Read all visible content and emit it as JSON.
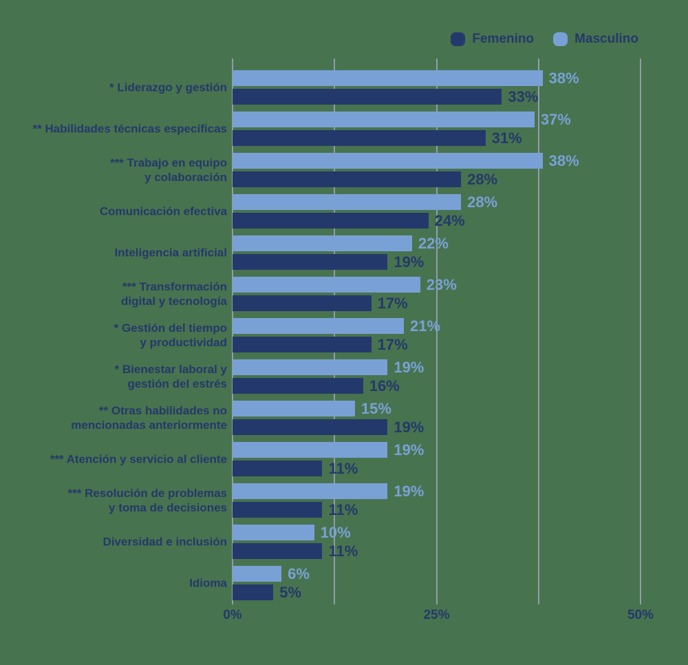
{
  "colors": {
    "background": "#48734F",
    "femenino": "#24396B",
    "masculino": "#79A1D6",
    "gridline": "#8F9DAC",
    "label_text": "#24396B"
  },
  "legend": [
    {
      "label": "Femenino",
      "color": "#24396B"
    },
    {
      "label": "Masculino",
      "color": "#79A1D6"
    }
  ],
  "axis": {
    "gridlines_pct": [
      0,
      12.5,
      25,
      37.5,
      50
    ],
    "ticks": [
      {
        "pct": 0,
        "label": "0%"
      },
      {
        "pct": 25,
        "label": "25%"
      },
      {
        "pct": 50,
        "label": "50%"
      }
    ]
  },
  "chart_data": {
    "type": "bar",
    "orientation": "horizontal",
    "title": "",
    "xlabel": "",
    "ylabel": "",
    "xlim": [
      0,
      50
    ],
    "grid": true,
    "legend_position": "top-right",
    "bar_order_top_to_bottom_within_category": [
      "Masculino",
      "Femenino"
    ],
    "value_suffix": "%",
    "categories": [
      "* Liderazgo y gestión",
      "** Habilidades técnicas específicas",
      "*** Trabajo en equipo\ny colaboración",
      "Comunicación efectiva",
      "Inteligencia artificial",
      "*** Transformación\ndigital y tecnología",
      "* Gestión del tiempo\ny productividad",
      "* Bienestar laboral y\ngestión del estrés",
      "** Otras habilidades no\nmencionadas anteriormente",
      "*** Atención y servicio al cliente",
      "*** Resolución de problemas\ny toma de decisiones",
      "Diversidad e inclusión",
      "Idioma"
    ],
    "series": [
      {
        "name": "Masculino",
        "color": "#79A1D6",
        "values": [
          38,
          37,
          38,
          28,
          22,
          23,
          21,
          19,
          15,
          19,
          19,
          10,
          6
        ]
      },
      {
        "name": "Femenino",
        "color": "#24396B",
        "values": [
          33,
          31,
          28,
          24,
          19,
          17,
          17,
          16,
          19,
          11,
          11,
          11,
          5
        ]
      }
    ]
  }
}
